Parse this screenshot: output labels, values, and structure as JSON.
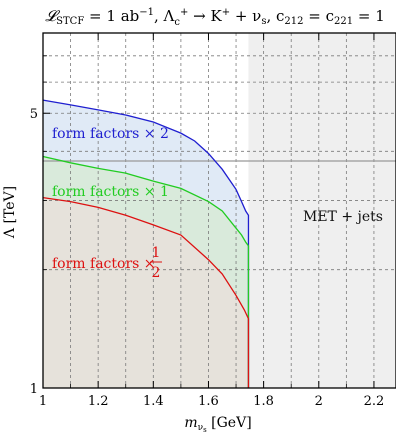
{
  "chart_data": {
    "type": "area",
    "title": "𝓛STCF = 1 ab⁻¹, Λc⁺ → K⁺ + νs, c212 = c221 = 1",
    "xlabel": "mνs [GeV]",
    "ylabel": "Λ [TeV]",
    "xlim": [
      1.0,
      2.28
    ],
    "ylim": [
      1.0,
      8.0
    ],
    "y_scale": "log",
    "grid": true,
    "x_ticks": [
      1,
      1.2,
      1.4,
      1.6,
      1.8,
      2,
      2.2
    ],
    "x_tick_labels": [
      "1",
      "1.2",
      "1.4",
      "1.6",
      "1.8",
      "2",
      "2.2"
    ],
    "y_ticks": [
      1,
      5
    ],
    "y_tick_labels": [
      "1",
      "5"
    ],
    "series": [
      {
        "name": "form factors × 2",
        "color": "#1f1fd0",
        "fill": "#dbe6f5",
        "x": [
          1.0,
          1.1,
          1.2,
          1.3,
          1.4,
          1.5,
          1.55,
          1.6,
          1.65,
          1.7,
          1.72,
          1.735,
          1.745
        ],
        "y": [
          5.4,
          5.25,
          5.1,
          4.95,
          4.75,
          4.45,
          4.25,
          3.95,
          3.6,
          3.2,
          2.98,
          2.82,
          2.75
        ]
      },
      {
        "name": "form factors × 1",
        "color": "#22cc22",
        "fill": "#d7ead6",
        "x": [
          1.0,
          1.1,
          1.2,
          1.3,
          1.4,
          1.5,
          1.6,
          1.65,
          1.7,
          1.72,
          1.735,
          1.745
        ],
        "y": [
          3.88,
          3.74,
          3.62,
          3.52,
          3.36,
          3.22,
          2.98,
          2.82,
          2.55,
          2.45,
          2.35,
          2.3
        ]
      },
      {
        "name": "form factors × ",
        "label_fraction": {
          "numerator": "1",
          "denominator": "2"
        },
        "color": "#dd1111",
        "fill": "#e7e0da",
        "x": [
          1.0,
          1.1,
          1.2,
          1.3,
          1.4,
          1.5,
          1.6,
          1.65,
          1.7,
          1.73,
          1.745
        ],
        "y": [
          3.05,
          2.98,
          2.88,
          2.75,
          2.6,
          2.45,
          2.12,
          1.95,
          1.72,
          1.58,
          1.5
        ]
      }
    ],
    "region": {
      "name": "MET + jets",
      "color": "#efefef",
      "line_color": "#999999",
      "x_start": 1.745,
      "y_top": 3.78,
      "y_top_x_start": 1.0
    }
  }
}
